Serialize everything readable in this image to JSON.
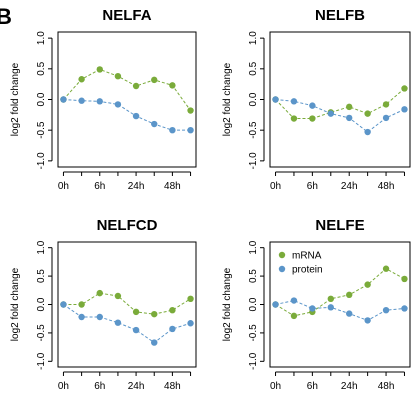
{
  "figure_label": "B",
  "colors": {
    "mrna": "#7aab3a",
    "protein": "#5b95c9"
  },
  "chart_data": [
    {
      "type": "line",
      "title": "NELFA",
      "ylabel": "log2 fold change",
      "xlabel": "",
      "ylim": [
        -1.0,
        1.0
      ],
      "yticks": [
        "-1.0",
        "-0.5",
        "0.0",
        "0.5",
        "1.0"
      ],
      "x": [
        0,
        1,
        2,
        3,
        4,
        5,
        6,
        7
      ],
      "xtick_positions": [
        0,
        2,
        4,
        6
      ],
      "xtick_labels": [
        "0h",
        "6h",
        "24h",
        "48h"
      ],
      "legend": false,
      "series": [
        {
          "name": "mRNA",
          "color": "#7aab3a",
          "values": [
            0.0,
            0.33,
            0.49,
            0.38,
            0.22,
            0.32,
            0.23,
            -0.18
          ]
        },
        {
          "name": "protein",
          "color": "#5b95c9",
          "values": [
            0.0,
            -0.02,
            -0.03,
            -0.08,
            -0.27,
            -0.4,
            -0.5,
            -0.5
          ]
        }
      ]
    },
    {
      "type": "line",
      "title": "NELFB",
      "ylabel": "log2 fold change",
      "xlabel": "",
      "ylim": [
        -1.0,
        1.0
      ],
      "yticks": [
        "-1.0",
        "-0.5",
        "0.0",
        "0.5",
        "1.0"
      ],
      "x": [
        0,
        1,
        2,
        3,
        4,
        5,
        6,
        7
      ],
      "xtick_positions": [
        0,
        2,
        4,
        6
      ],
      "xtick_labels": [
        "0h",
        "6h",
        "24h",
        "48h"
      ],
      "legend": false,
      "series": [
        {
          "name": "mRNA",
          "color": "#7aab3a",
          "values": [
            0.0,
            -0.31,
            -0.31,
            -0.21,
            -0.12,
            -0.23,
            -0.08,
            0.18
          ]
        },
        {
          "name": "protein",
          "color": "#5b95c9",
          "values": [
            0.0,
            -0.03,
            -0.1,
            -0.23,
            -0.3,
            -0.53,
            -0.3,
            -0.16
          ]
        }
      ]
    },
    {
      "type": "line",
      "title": "NELFCD",
      "ylabel": "log2 fold change",
      "xlabel": "",
      "ylim": [
        -1.0,
        1.0
      ],
      "yticks": [
        "-1.0",
        "-0.5",
        "0.0",
        "0.5",
        "1.0"
      ],
      "x": [
        0,
        1,
        2,
        3,
        4,
        5,
        6,
        7
      ],
      "xtick_positions": [
        0,
        2,
        4,
        6
      ],
      "xtick_labels": [
        "0h",
        "6h",
        "24h",
        "48h"
      ],
      "legend": false,
      "series": [
        {
          "name": "mRNA",
          "color": "#7aab3a",
          "values": [
            0.0,
            0.0,
            0.2,
            0.15,
            -0.13,
            -0.17,
            -0.1,
            0.1
          ]
        },
        {
          "name": "protein",
          "color": "#5b95c9",
          "values": [
            0.0,
            -0.22,
            -0.22,
            -0.32,
            -0.45,
            -0.67,
            -0.43,
            -0.33
          ]
        }
      ]
    },
    {
      "type": "line",
      "title": "NELFE",
      "ylabel": "log2 fold change",
      "xlabel": "",
      "ylim": [
        -1.0,
        1.0
      ],
      "yticks": [
        "-1.0",
        "-0.5",
        "0.0",
        "0.5",
        "1.0"
      ],
      "x": [
        0,
        1,
        2,
        3,
        4,
        5,
        6,
        7
      ],
      "xtick_positions": [
        0,
        2,
        4,
        6
      ],
      "xtick_labels": [
        "0h",
        "6h",
        "24h",
        "48h"
      ],
      "legend": true,
      "legend_position": "top-left",
      "series": [
        {
          "name": "mRNA",
          "color": "#7aab3a",
          "values": [
            0.0,
            -0.2,
            -0.13,
            0.1,
            0.17,
            0.35,
            0.63,
            0.45
          ]
        },
        {
          "name": "protein",
          "color": "#5b95c9",
          "values": [
            0.0,
            0.07,
            -0.07,
            -0.05,
            -0.16,
            -0.28,
            -0.1,
            -0.07
          ]
        }
      ]
    }
  ]
}
